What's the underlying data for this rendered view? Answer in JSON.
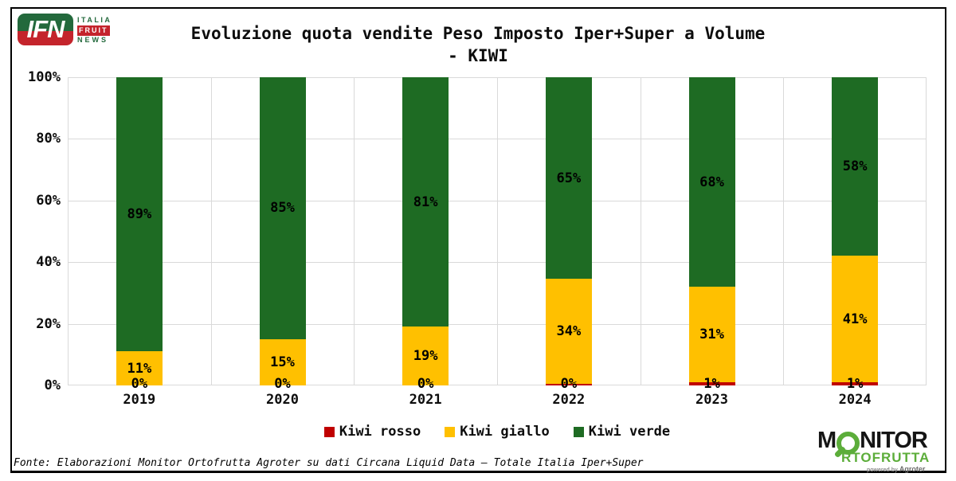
{
  "logo_ifn": {
    "ifn": "IFN",
    "italia": "ITALIA",
    "fruit": "FRUIT",
    "news": "NEWS"
  },
  "title": {
    "line1": "Evoluzione quota vendite Peso Imposto Iper+Super a Volume",
    "line2": "- KIWI"
  },
  "chart_data": {
    "type": "bar",
    "stacked": true,
    "title": "Evoluzione quota vendite Peso Imposto Iper+Super a Volume - KIWI",
    "categories": [
      "2019",
      "2020",
      "2021",
      "2022",
      "2023",
      "2024"
    ],
    "series": [
      {
        "name": "Kiwi rosso",
        "color": "#C00000",
        "values": [
          0,
          0,
          0,
          0,
          1,
          1
        ],
        "labels": [
          "0%",
          "0%",
          "0%",
          "0%",
          "1%",
          "1%"
        ],
        "render_heights": [
          0,
          0,
          0,
          0.5,
          1,
          1
        ]
      },
      {
        "name": "Kiwi giallo",
        "color": "#FFC000",
        "values": [
          11,
          15,
          19,
          34,
          31,
          41
        ],
        "labels": [
          "11%",
          "15%",
          "19%",
          "34%",
          "31%",
          "41%"
        ]
      },
      {
        "name": "Kiwi verde",
        "color": "#1E6B23",
        "values": [
          89,
          85,
          81,
          65,
          68,
          58
        ],
        "labels": [
          "89%",
          "85%",
          "81%",
          "65%",
          "68%",
          "58%"
        ]
      }
    ],
    "ylim": [
      0,
      100
    ],
    "yticks": [
      "0%",
      "20%",
      "40%",
      "60%",
      "80%",
      "100%"
    ],
    "grid": true,
    "grid_color": "#D9D9D9",
    "legend_position": "bottom"
  },
  "footer": {
    "source": "Fonte: Elaborazioni Monitor Ortofrutta Agroter su dati Circana Liquid Data – Totale Italia Iper+Super"
  },
  "logo_monitor": {
    "m": "M",
    "nitor": "NITOR",
    "rtofrutta": "RTOFRUTTA",
    "powered": "powered by",
    "agroter": "Agroter"
  }
}
